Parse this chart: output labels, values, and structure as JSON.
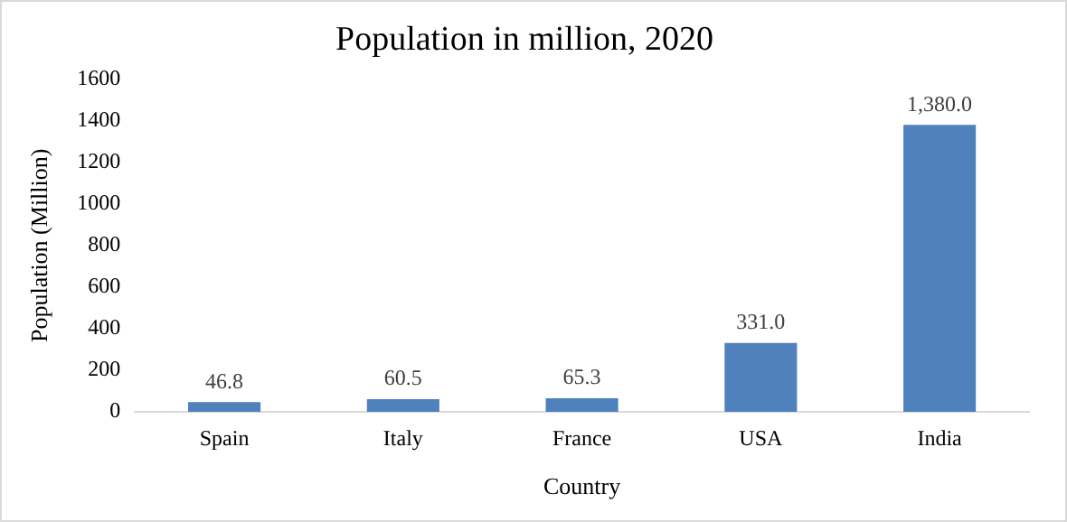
{
  "chart_data": {
    "type": "bar",
    "title": "Population in million, 2020",
    "xlabel": "Country",
    "ylabel": "Population (Million)",
    "categories": [
      "Spain",
      "Italy",
      "France",
      "USA",
      "India"
    ],
    "values": [
      46.8,
      60.5,
      65.3,
      331.0,
      1380.0
    ],
    "value_labels": [
      "46.8",
      "60.5",
      "65.3",
      "331.0",
      "1,380.0"
    ],
    "color": "#4f81bd",
    "ylim": [
      0,
      1600
    ],
    "yticks": [
      0,
      200,
      400,
      600,
      800,
      1000,
      1200,
      1400,
      1600
    ],
    "grid": false,
    "legend": false
  }
}
